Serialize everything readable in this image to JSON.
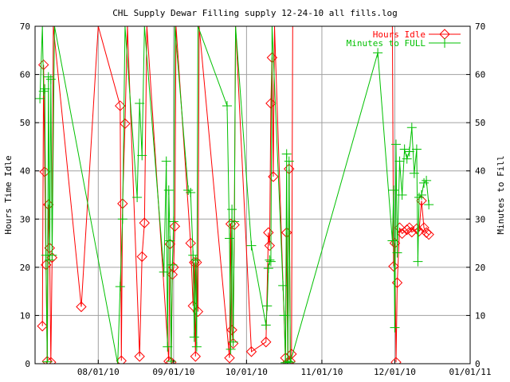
{
  "chart_data": {
    "type": "line",
    "title": "CHL Supply Dewar Filling supply 12-24-10 all fills.log",
    "ylabel": "Hours Time Idle",
    "y2label": "Minutes to Fill",
    "xlim": [
      "07/06/10",
      "01/01/11"
    ],
    "ylim": [
      0,
      70
    ],
    "y2lim": [
      0,
      70
    ],
    "grid": true,
    "legend_position": "top-right",
    "x_ticks": [
      "08/01/10",
      "09/01/10",
      "10/01/10",
      "11/01/10",
      "12/01/10",
      "01/01/11"
    ],
    "y_ticks": [
      0,
      10,
      20,
      30,
      40,
      50,
      60,
      70
    ],
    "series": [
      {
        "name": "Hours Idle",
        "color": "#ff0000",
        "marker": "diamond",
        "axis": "y1",
        "points": [
          [
            "07/09/10 00:00",
            7.8
          ],
          [
            "07/09/10 12:00",
            62
          ],
          [
            "07/10/10 00:00",
            39.8
          ],
          [
            "07/10/10 12:00",
            20.5
          ],
          [
            "07/11/10 00:00",
            0.5
          ],
          [
            "07/11/10 12:00",
            33
          ],
          [
            "07/12/10 00:00",
            24
          ],
          [
            "07/12/10 12:00",
            0.3
          ],
          [
            "07/13/10 00:00",
            22
          ],
          [
            "07/13/10 12:00",
            70
          ],
          [
            "07/25/10 00:00",
            11.8
          ],
          [
            "08/01/10 00:00",
            70
          ],
          [
            "08/10/10 00:00",
            53.5
          ],
          [
            "08/10/10 12:00",
            0.6
          ],
          [
            "08/11/10 00:00",
            33.2
          ],
          [
            "08/12/10 00:00",
            49.8
          ],
          [
            "08/13/10 00:00",
            70
          ],
          [
            "08/18/10 00:00",
            1.5
          ],
          [
            "08/19/10 00:00",
            22.2
          ],
          [
            "08/20/10 00:00",
            29.2
          ],
          [
            "08/21/10 00:00",
            70
          ],
          [
            "08/30/10 00:00",
            0.5
          ],
          [
            "08/30/10 12:00",
            24.8
          ],
          [
            "08/31/10 00:00",
            0.3
          ],
          [
            "08/31/10 12:00",
            18.5
          ],
          [
            "09/01/10 00:00",
            20
          ],
          [
            "09/01/10 12:00",
            28.5
          ],
          [
            "09/02/10 00:00",
            70
          ],
          [
            "09/08/10 00:00",
            25
          ],
          [
            "09/09/10 00:00",
            12
          ],
          [
            "09/09/10 12:00",
            21
          ],
          [
            "09/10/10 00:00",
            1.5
          ],
          [
            "09/10/10 12:00",
            21
          ],
          [
            "09/11/10 00:00",
            10.8
          ],
          [
            "09/11/10 12:00",
            70
          ],
          [
            "09/24/10 00:00",
            1.2
          ],
          [
            "09/24/10 12:00",
            29
          ],
          [
            "09/25/10 00:00",
            7
          ],
          [
            "09/25/10 12:00",
            4.2
          ],
          [
            "09/26/10 00:00",
            28.8
          ],
          [
            "09/26/10 12:00",
            70
          ],
          [
            "10/03/10 00:00",
            2.5
          ],
          [
            "10/09/10 00:00",
            4.5
          ],
          [
            "10/10/10 00:00",
            27.2
          ],
          [
            "10/10/10 12:00",
            24.5
          ],
          [
            "10/11/10 00:00",
            54
          ],
          [
            "10/11/10 12:00",
            63.5
          ],
          [
            "10/12/10 00:00",
            38.8
          ],
          [
            "10/12/10 12:00",
            70
          ],
          [
            "10/17/10 00:00",
            1.2
          ],
          [
            "10/17/10 12:00",
            27.2
          ],
          [
            "10/18/10 00:00",
            0.3
          ],
          [
            "10/18/10 12:00",
            40.4
          ],
          [
            "10/19/10 00:00",
            0.5
          ],
          [
            "10/19/10 12:00",
            2
          ],
          [
            "10/20/10 00:00",
            70
          ],
          [
            "11/30/10 00:00",
            70
          ],
          [
            "11/30/10 12:00",
            20.2
          ],
          [
            "12/01/10 00:00",
            25
          ],
          [
            "12/01/10 12:00",
            0.3
          ],
          [
            "12/02/10 00:00",
            16.8
          ],
          [
            "12/03/10 00:00",
            28.2
          ],
          [
            "12/04/10 00:00",
            27
          ],
          [
            "12/06/10 00:00",
            27.8
          ],
          [
            "12/07/10 00:00",
            28.2
          ],
          [
            "12/08/10 00:00",
            27.3
          ],
          [
            "12/10/10 00:00",
            28
          ],
          [
            "12/11/10 00:00",
            27.5
          ],
          [
            "12/12/10 00:00",
            33.8
          ],
          [
            "12/13/10 00:00",
            28.2
          ],
          [
            "12/14/10 00:00",
            27.2
          ],
          [
            "12/15/10 00:00",
            26.8
          ]
        ]
      },
      {
        "name": "Minutes to FULL",
        "color": "#00c000",
        "marker": "plus",
        "axis": "y2",
        "points": [
          [
            "07/08/10 00:00",
            55
          ],
          [
            "07/09/10 00:00",
            70
          ],
          [
            "07/09/10 12:00",
            56.5
          ],
          [
            "07/10/10 00:00",
            57
          ],
          [
            "07/10/10 12:00",
            22.5
          ],
          [
            "07/11/10 00:00",
            0.4
          ],
          [
            "07/11/10 12:00",
            59.5
          ],
          [
            "07/12/10 00:00",
            21.5
          ],
          [
            "07/12/10 12:00",
            59
          ],
          [
            "07/13/10 00:00",
            22.5
          ],
          [
            "07/14/10 00:00",
            70
          ],
          [
            "08/09/10 00:00",
            0
          ],
          [
            "08/10/10 00:00",
            16
          ],
          [
            "08/11/10 00:00",
            30
          ],
          [
            "08/12/10 00:00",
            70
          ],
          [
            "08/17/10 00:00",
            34.5
          ],
          [
            "08/18/10 00:00",
            54
          ],
          [
            "08/19/10 00:00",
            43.2
          ],
          [
            "08/20/10 00:00",
            70
          ],
          [
            "08/28/10 00:00",
            19
          ],
          [
            "08/29/10 00:00",
            42
          ],
          [
            "08/29/10 12:00",
            3.5
          ],
          [
            "08/30/10 00:00",
            36
          ],
          [
            "08/30/10 12:00",
            25.5
          ],
          [
            "08/31/10 00:00",
            0.5
          ],
          [
            "08/31/10 12:00",
            20.5
          ],
          [
            "09/01/10 00:00",
            29.5
          ],
          [
            "09/01/10 12:00",
            70
          ],
          [
            "09/07/10 00:00",
            36
          ],
          [
            "09/08/10 00:00",
            35.5
          ],
          [
            "09/09/10 00:00",
            22.5
          ],
          [
            "09/09/10 12:00",
            5.5
          ],
          [
            "09/10/10 00:00",
            21.5
          ],
          [
            "09/10/10 12:00",
            3.5
          ],
          [
            "09/11/10 00:00",
            70
          ],
          [
            "09/23/10 00:00",
            53.5
          ],
          [
            "09/24/10 00:00",
            26
          ],
          [
            "09/24/10 12:00",
            3
          ],
          [
            "09/25/10 00:00",
            32
          ],
          [
            "09/25/10 12:00",
            4.5
          ],
          [
            "09/26/10 00:00",
            29.5
          ],
          [
            "09/26/10 12:00",
            70
          ],
          [
            "10/03/10 00:00",
            24.5
          ],
          [
            "10/09/10 00:00",
            8
          ],
          [
            "10/09/10 12:00",
            12
          ],
          [
            "10/10/10 00:00",
            19.8
          ],
          [
            "10/10/10 12:00",
            21.5
          ],
          [
            "10/11/10 00:00",
            21.2
          ],
          [
            "10/11/10 12:00",
            70
          ],
          [
            "10/16/10 00:00",
            16.2
          ],
          [
            "10/16/10 12:00",
            10
          ],
          [
            "10/17/10 00:00",
            0.2
          ],
          [
            "10/17/10 12:00",
            43.5
          ],
          [
            "10/18/10 00:00",
            0.5
          ],
          [
            "10/18/10 12:00",
            42
          ],
          [
            "10/19/10 00:00",
            0.3
          ],
          [
            "11/24/10 00:00",
            64.5
          ],
          [
            "11/30/10 00:00",
            25.5
          ],
          [
            "11/30/10 12:00",
            36
          ],
          [
            "12/01/10 00:00",
            7.5
          ],
          [
            "12/01/10 12:00",
            45.5
          ],
          [
            "12/02/10 00:00",
            23
          ],
          [
            "12/03/10 00:00",
            42
          ],
          [
            "12/04/10 00:00",
            35
          ],
          [
            "12/05/10 00:00",
            44.5
          ],
          [
            "12/06/10 00:00",
            42.5
          ],
          [
            "12/07/10 00:00",
            44
          ],
          [
            "12/08/10 00:00",
            49
          ],
          [
            "12/09/10 00:00",
            39.5
          ],
          [
            "12/10/10 00:00",
            44.5
          ],
          [
            "12/10/10 12:00",
            21.2
          ],
          [
            "12/11/10 00:00",
            34.5
          ],
          [
            "12/12/10 00:00",
            35
          ],
          [
            "12/13/10 00:00",
            37.5
          ],
          [
            "12/14/10 00:00",
            38
          ],
          [
            "12/15/10 00:00",
            33
          ]
        ]
      }
    ]
  }
}
